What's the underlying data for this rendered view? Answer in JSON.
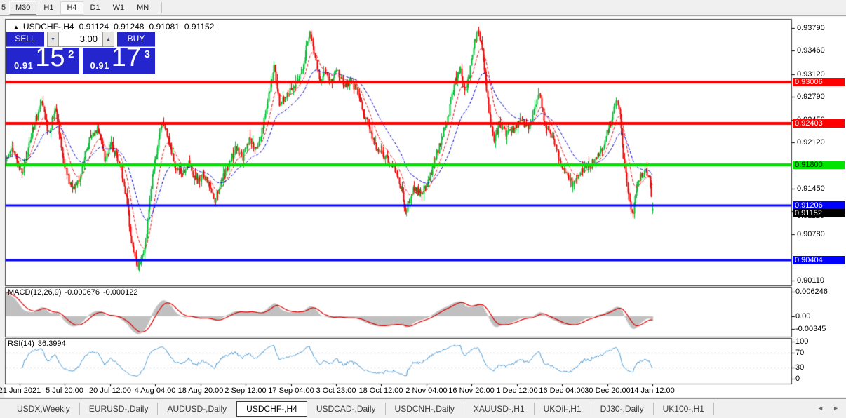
{
  "toolbar": {
    "timeframes": [
      {
        "label": "5",
        "state": "clipped"
      },
      {
        "label": "M30",
        "state": "raised"
      },
      {
        "label": "H1",
        "state": "flat"
      },
      {
        "label": "H4",
        "state": "active"
      },
      {
        "label": "D1",
        "state": "flat"
      },
      {
        "label": "W1",
        "state": "flat"
      },
      {
        "label": "MN",
        "state": "flat"
      }
    ]
  },
  "chart_header": {
    "collapse_icon": "▲",
    "symbol_period": "USDCHF-,H4",
    "open": "0.91124",
    "high": "0.91248",
    "low": "0.91081",
    "close": "0.91152"
  },
  "trade_panel": {
    "sell_label": "SELL",
    "buy_label": "BUY",
    "volume": "3.00",
    "spin_down_icon": "▼",
    "spin_up_icon": "▲",
    "sell_price_prefix": "0.91",
    "sell_price_big": "15",
    "sell_price_sup": "2",
    "buy_price_prefix": "0.91",
    "buy_price_big": "17",
    "buy_price_sup": "3"
  },
  "tabs": {
    "items": [
      "USDX,Weekly",
      "EURUSD-,Daily",
      "AUDUSD-,Daily",
      "USDCHF-,H4",
      "USDCAD-,Daily",
      "USDCNH-,Daily",
      "XAUUSD-,H1",
      "UKOil-,H1",
      "DJ30-,Daily",
      "UK100-,H1"
    ],
    "active": "USDCHF-,H4",
    "scroll_left_icon": "◄",
    "scroll_right_icon": "►"
  },
  "chart_data": {
    "type": "candlestick",
    "symbol": "USDCHF-",
    "timeframe": "H4",
    "last_bar": {
      "open": 0.91124,
      "high": 0.91248,
      "low": 0.91081,
      "close": 0.91152
    },
    "current_price": "0.91152",
    "price_axis": {
      "ticks": [
        "0.93790",
        "0.93460",
        "0.93120",
        "0.92790",
        "0.92450",
        "0.92120",
        "0.91450",
        "0.91120",
        "0.90780",
        "0.90110"
      ]
    },
    "horizontal_lines": [
      {
        "price": 0.93006,
        "label": "0.93006",
        "color": "#FF0000",
        "text": "#FFFFFF",
        "width": 4
      },
      {
        "price": 0.92403,
        "label": "0.92403",
        "color": "#FF0000",
        "text": "#FFFFFF",
        "width": 4
      },
      {
        "price": 0.918,
        "label": "0.91800",
        "color": "#00E400",
        "text": "#000000",
        "width": 4
      },
      {
        "price": 0.91206,
        "label": "0.91206",
        "color": "#0000FF",
        "text": "#FFFFFF",
        "width": 3
      },
      {
        "price": 0.90404,
        "label": "0.90404",
        "color": "#0000FF",
        "text": "#FFFFFF",
        "width": 3
      }
    ],
    "x_axis_labels": [
      "21 Jun 2021",
      "5 Jul 20:00",
      "20 Jul 12:00",
      "4 Aug 04:00",
      "18 Aug 20:00",
      "2 Sep 12:00",
      "17 Sep 04:00",
      "3 Oct 23:00",
      "18 Oct 12:00",
      "2 Nov 04:00",
      "16 Nov 20:00",
      "1 Dec 12:00",
      "16 Dec 04:00",
      "30 Dec 20:00",
      "14 Jan 12:00"
    ],
    "indicators": {
      "macd": {
        "name": "MACD(12,26,9)",
        "value1": "-0.000676",
        "value2": "-0.000122",
        "axis_labels": [
          "0.006246",
          "0.00",
          "-0.00345"
        ],
        "histogram_color": "#C0C0C0",
        "signal_color": "#DD0000"
      },
      "rsi": {
        "name": "RSI(14)",
        "value": "36.3994",
        "axis_labels": [
          "100",
          "70",
          "30",
          "0"
        ],
        "levels": [
          70,
          30
        ],
        "line_color": "#4D9BD5"
      }
    },
    "colors": {
      "bull": "#00BE32",
      "bear": "#F00000",
      "ma_fast": "#E81010",
      "ma_slow": "#0000C8",
      "background": "#FFFFFF"
    },
    "price_path": [
      [
        0.0,
        0.9185
      ],
      [
        0.008,
        0.9205
      ],
      [
        0.024,
        0.9165
      ],
      [
        0.04,
        0.923
      ],
      [
        0.054,
        0.9272
      ],
      [
        0.065,
        0.9225
      ],
      [
        0.076,
        0.9268
      ],
      [
        0.089,
        0.918
      ],
      [
        0.1,
        0.9145
      ],
      [
        0.113,
        0.916
      ],
      [
        0.127,
        0.9215
      ],
      [
        0.141,
        0.9235
      ],
      [
        0.152,
        0.919
      ],
      [
        0.163,
        0.921
      ],
      [
        0.174,
        0.9185
      ],
      [
        0.184,
        0.914
      ],
      [
        0.193,
        0.907
      ],
      [
        0.203,
        0.9028
      ],
      [
        0.214,
        0.9055
      ],
      [
        0.225,
        0.916
      ],
      [
        0.239,
        0.9238
      ],
      [
        0.249,
        0.9225
      ],
      [
        0.26,
        0.918
      ],
      [
        0.271,
        0.916
      ],
      [
        0.282,
        0.9185
      ],
      [
        0.293,
        0.9155
      ],
      [
        0.304,
        0.9165
      ],
      [
        0.314,
        0.9148
      ],
      [
        0.322,
        0.9128
      ],
      [
        0.333,
        0.9158
      ],
      [
        0.344,
        0.918
      ],
      [
        0.355,
        0.9205
      ],
      [
        0.365,
        0.919
      ],
      [
        0.376,
        0.9215
      ],
      [
        0.387,
        0.92
      ],
      [
        0.398,
        0.924
      ],
      [
        0.409,
        0.93
      ],
      [
        0.414,
        0.9323
      ],
      [
        0.423,
        0.9265
      ],
      [
        0.434,
        0.9285
      ],
      [
        0.445,
        0.9295
      ],
      [
        0.456,
        0.931
      ],
      [
        0.469,
        0.9372
      ],
      [
        0.477,
        0.934
      ],
      [
        0.485,
        0.93
      ],
      [
        0.492,
        0.932
      ],
      [
        0.501,
        0.93
      ],
      [
        0.512,
        0.9315
      ],
      [
        0.523,
        0.9295
      ],
      [
        0.534,
        0.93
      ],
      [
        0.544,
        0.9285
      ],
      [
        0.553,
        0.9255
      ],
      [
        0.564,
        0.9225
      ],
      [
        0.575,
        0.92
      ],
      [
        0.586,
        0.919
      ],
      [
        0.596,
        0.9182
      ],
      [
        0.607,
        0.916
      ],
      [
        0.618,
        0.9112
      ],
      [
        0.629,
        0.9145
      ],
      [
        0.64,
        0.914
      ],
      [
        0.651,
        0.9148
      ],
      [
        0.661,
        0.918
      ],
      [
        0.672,
        0.9215
      ],
      [
        0.683,
        0.925
      ],
      [
        0.694,
        0.93
      ],
      [
        0.702,
        0.9325
      ],
      [
        0.709,
        0.9285
      ],
      [
        0.716,
        0.931
      ],
      [
        0.723,
        0.9355
      ],
      [
        0.73,
        0.9375
      ],
      [
        0.737,
        0.934
      ],
      [
        0.745,
        0.927
      ],
      [
        0.754,
        0.9215
      ],
      [
        0.763,
        0.924
      ],
      [
        0.774,
        0.9225
      ],
      [
        0.785,
        0.923
      ],
      [
        0.796,
        0.9245
      ],
      [
        0.807,
        0.9235
      ],
      [
        0.815,
        0.925
      ],
      [
        0.824,
        0.929
      ],
      [
        0.833,
        0.924
      ],
      [
        0.842,
        0.9225
      ],
      [
        0.85,
        0.9205
      ],
      [
        0.859,
        0.918
      ],
      [
        0.868,
        0.9165
      ],
      [
        0.876,
        0.915
      ],
      [
        0.885,
        0.916
      ],
      [
        0.894,
        0.918
      ],
      [
        0.902,
        0.9175
      ],
      [
        0.911,
        0.919
      ],
      [
        0.92,
        0.92
      ],
      [
        0.928,
        0.922
      ],
      [
        0.937,
        0.9245
      ],
      [
        0.943,
        0.9275
      ],
      [
        0.95,
        0.925
      ],
      [
        0.956,
        0.918
      ],
      [
        0.963,
        0.913
      ],
      [
        0.969,
        0.9105
      ],
      [
        0.976,
        0.915
      ],
      [
        0.982,
        0.9165
      ],
      [
        0.989,
        0.917
      ],
      [
        0.995,
        0.916
      ],
      [
        1.0,
        0.91152
      ]
    ]
  }
}
